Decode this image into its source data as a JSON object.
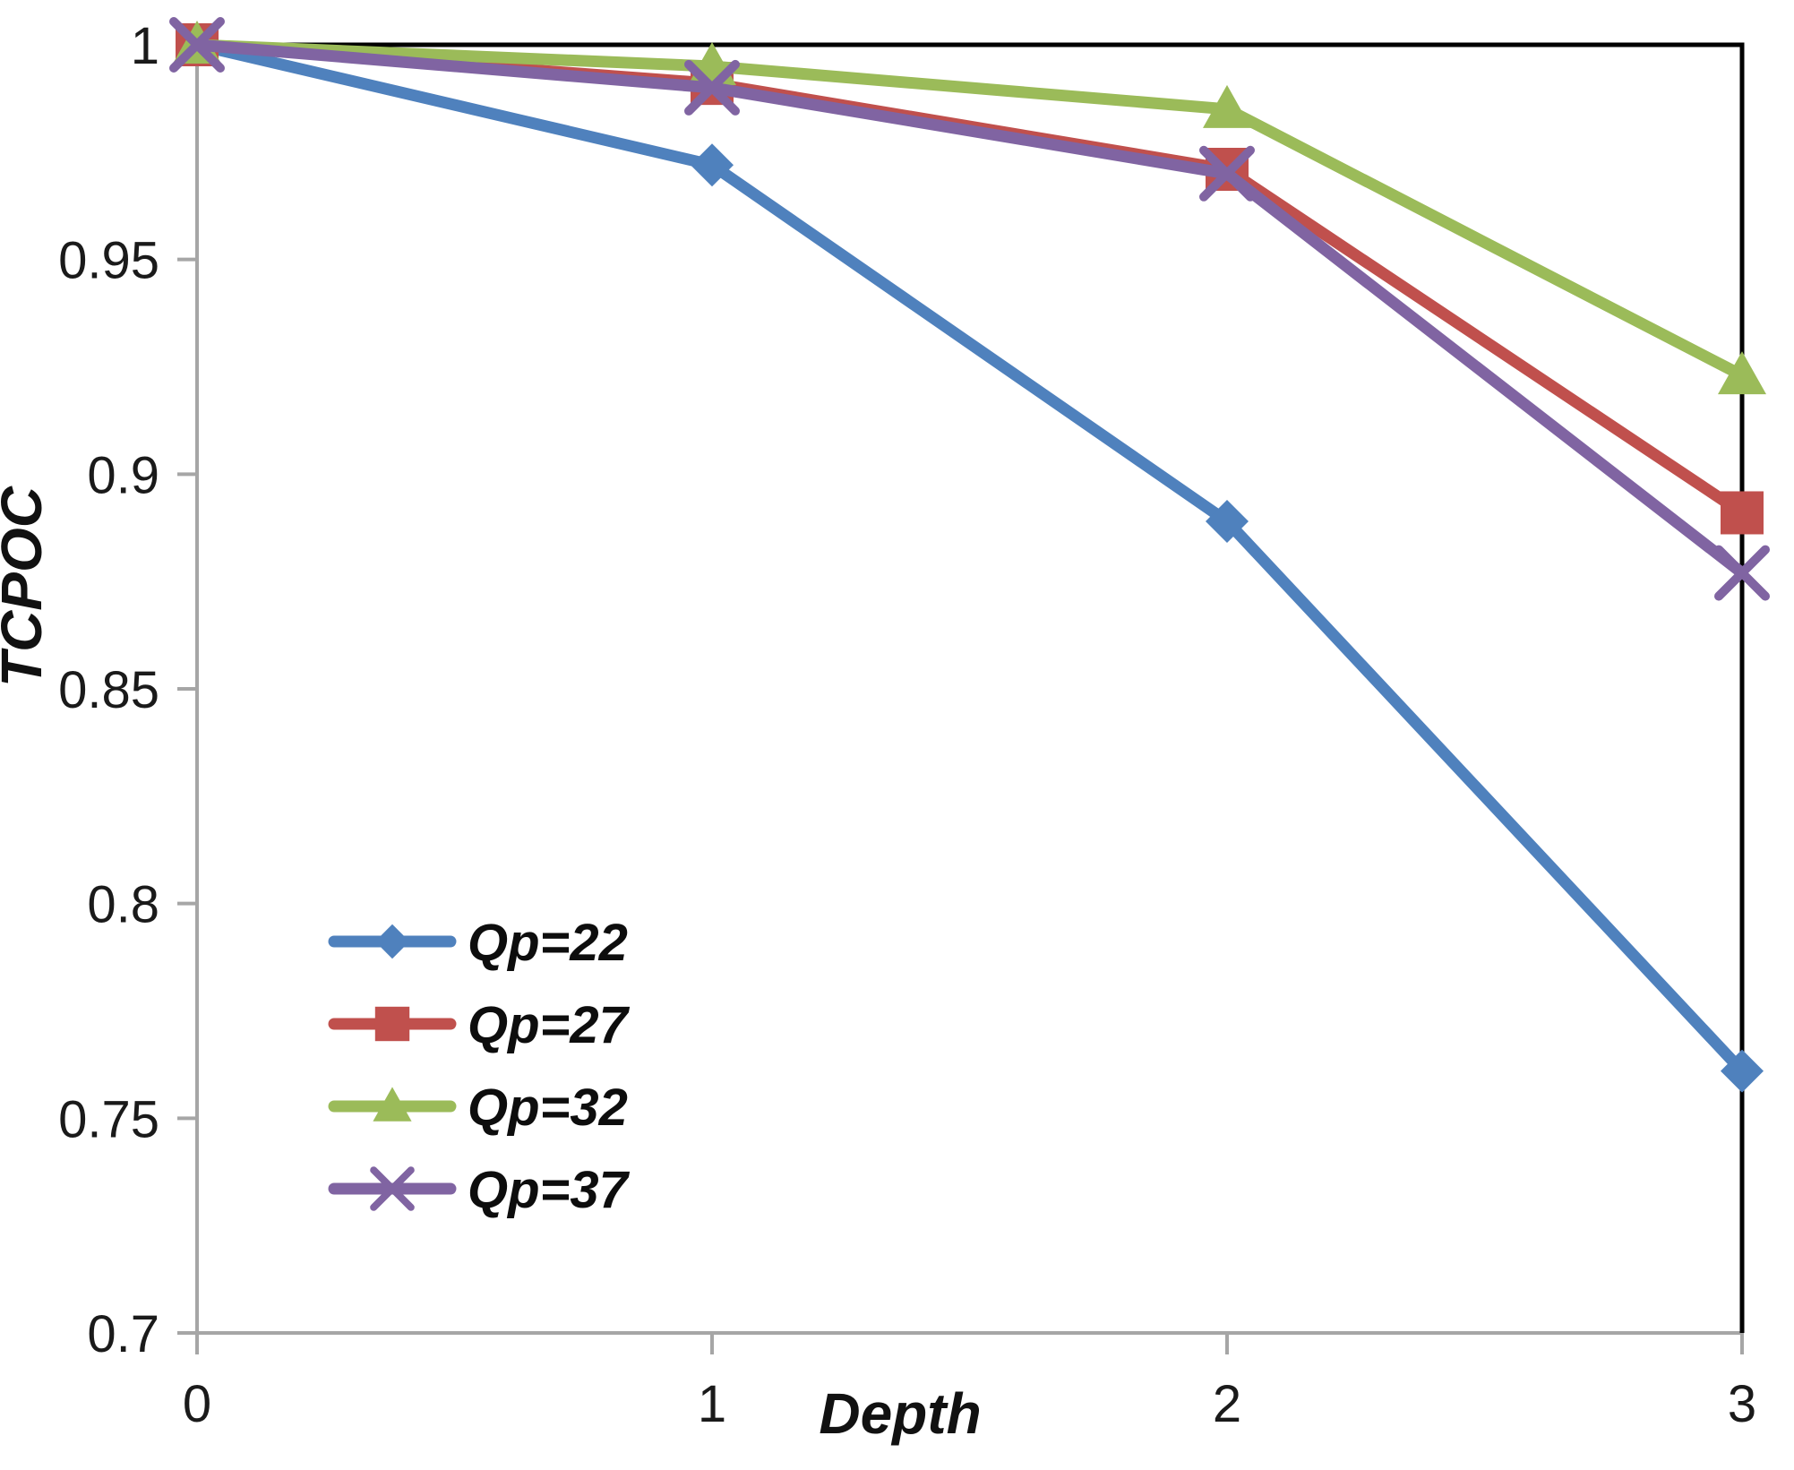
{
  "figure": {
    "background": "#ffffff",
    "axis_color": "#a6a6a6",
    "border_color": "#000000",
    "text_color": "#1a1a1a"
  },
  "chart_data": {
    "type": "line",
    "title": "",
    "xlabel": "Depth",
    "ylabel": "TCPOC",
    "x": [
      0,
      1,
      2,
      3
    ],
    "x_tick_labels": [
      "0",
      "1",
      "2",
      "3"
    ],
    "xlim": [
      0,
      3
    ],
    "ylim": [
      0.7,
      1.0
    ],
    "y_ticks": [
      1,
      0.95,
      0.9,
      0.85,
      0.8,
      0.75,
      0.7
    ],
    "y_tick_labels": [
      "1",
      "0.95",
      "0.9",
      "0.85",
      "0.8",
      "0.75",
      "0.7"
    ],
    "grid": false,
    "legend_position": "inside-lower-left",
    "series": [
      {
        "name": "Qp=22",
        "color": "#4F81BD",
        "marker": "diamond",
        "values": [
          1.0,
          0.972,
          0.889,
          0.761
        ]
      },
      {
        "name": "Qp=27",
        "color": "#C0504D",
        "marker": "square",
        "values": [
          1.0,
          0.991,
          0.971,
          0.891
        ]
      },
      {
        "name": "Qp=32",
        "color": "#9BBB59",
        "marker": "triangle",
        "values": [
          1.0,
          0.995,
          0.985,
          0.923
        ]
      },
      {
        "name": "Qp=37",
        "color": "#8064A2",
        "marker": "x",
        "values": [
          1.0,
          0.99,
          0.97,
          0.877
        ]
      }
    ]
  }
}
